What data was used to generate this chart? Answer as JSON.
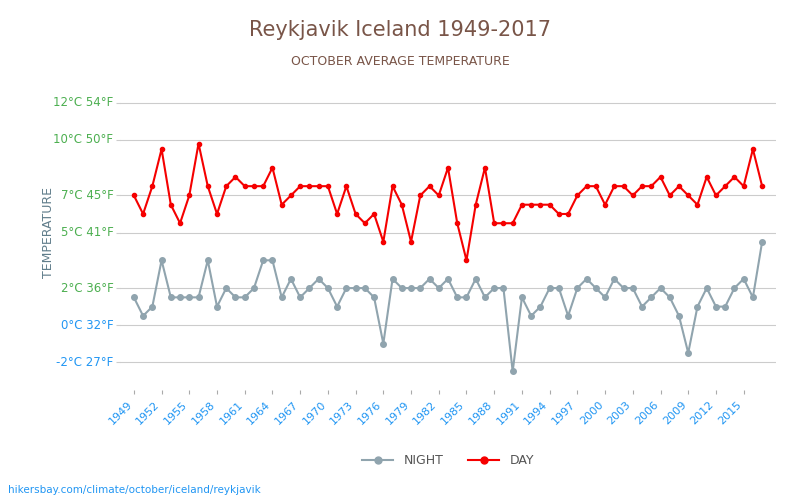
{
  "title": "Reykjavik Iceland 1949-2017",
  "subtitle": "OCTOBER AVERAGE TEMPERATURE",
  "xlabel_bottom": "hikersbay.com/climate/october/iceland/reykjavik",
  "ylabel": "TEMPERATURE",
  "legend_night": "NIGHT",
  "legend_day": "DAY",
  "years": [
    1949,
    1950,
    1951,
    1952,
    1953,
    1954,
    1955,
    1956,
    1957,
    1958,
    1959,
    1960,
    1961,
    1962,
    1963,
    1964,
    1965,
    1966,
    1967,
    1968,
    1969,
    1970,
    1971,
    1972,
    1973,
    1974,
    1975,
    1976,
    1977,
    1978,
    1979,
    1980,
    1981,
    1982,
    1983,
    1984,
    1985,
    1986,
    1987,
    1988,
    1989,
    1990,
    1991,
    1992,
    1993,
    1994,
    1995,
    1996,
    1997,
    1998,
    1999,
    2000,
    2001,
    2002,
    2003,
    2004,
    2005,
    2006,
    2007,
    2008,
    2009,
    2010,
    2011,
    2012,
    2013,
    2014,
    2015,
    2016,
    2017
  ],
  "day": [
    7.0,
    6.0,
    7.5,
    9.5,
    6.5,
    5.5,
    7.0,
    9.8,
    7.5,
    6.0,
    7.5,
    8.0,
    7.5,
    7.5,
    7.5,
    8.5,
    6.5,
    7.0,
    7.5,
    7.5,
    7.5,
    7.5,
    6.0,
    7.5,
    6.0,
    5.5,
    6.0,
    4.5,
    7.5,
    6.5,
    4.5,
    7.0,
    7.5,
    7.0,
    8.5,
    5.5,
    3.5,
    6.5,
    8.5,
    5.5,
    5.5,
    5.5,
    6.5,
    6.5,
    6.5,
    6.5,
    6.0,
    6.0,
    7.0,
    7.5,
    7.5,
    6.5,
    7.5,
    7.5,
    7.0,
    7.5,
    7.5,
    8.0,
    7.0,
    7.5,
    7.0,
    6.5,
    8.0,
    7.0,
    7.5,
    8.0,
    7.5,
    9.5,
    7.5
  ],
  "night": [
    1.5,
    0.5,
    1.0,
    3.5,
    1.5,
    1.5,
    1.5,
    1.5,
    3.5,
    1.0,
    2.0,
    1.5,
    1.5,
    2.0,
    3.5,
    3.5,
    1.5,
    2.5,
    1.5,
    2.0,
    2.5,
    2.0,
    1.0,
    2.0,
    2.0,
    2.0,
    1.5,
    -1.0,
    2.5,
    2.0,
    2.0,
    2.0,
    2.5,
    2.0,
    2.5,
    1.5,
    1.5,
    2.5,
    1.5,
    2.0,
    2.0,
    -2.5,
    1.5,
    0.5,
    1.0,
    2.0,
    2.0,
    0.5,
    2.0,
    2.5,
    2.0,
    1.5,
    2.5,
    2.0,
    2.0,
    1.0,
    1.5,
    2.0,
    1.5,
    0.5,
    -1.5,
    1.0,
    2.0,
    1.0,
    1.0,
    2.0,
    2.5,
    1.5,
    4.5
  ],
  "yticks_c": [
    12,
    10,
    7,
    5,
    2,
    0,
    -2
  ],
  "yticks_f": [
    54,
    50,
    45,
    41,
    36,
    32,
    27
  ],
  "ytick_colors": [
    "#4caf50",
    "#4caf50",
    "#4caf50",
    "#4caf50",
    "#4caf50",
    "#2196f3",
    "#2196f3"
  ],
  "ymin": -3.5,
  "ymax": 13.5,
  "day_color": "#f50000",
  "night_color": "#90a4ae",
  "grid_color": "#cccccc",
  "bg_color": "#ffffff",
  "title_color": "#795548",
  "subtitle_color": "#795548",
  "xtick_color": "#2196f3",
  "url_color": "#2196f3",
  "ylabel_color": "#607d8b"
}
